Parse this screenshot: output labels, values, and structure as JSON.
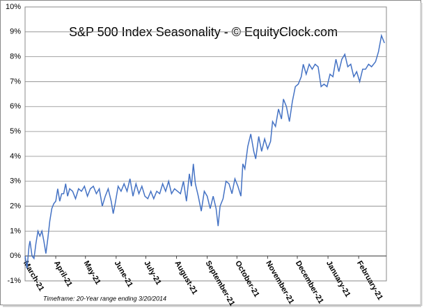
{
  "chart_data": {
    "type": "line",
    "title": "S&P 500 Index Seasonality - © EquityClock.com",
    "subtitle": "Timeframe: 20-Year range ending 3/20/2014",
    "x": [
      0,
      2,
      4,
      5,
      7,
      9,
      11,
      13,
      15,
      17,
      19,
      21,
      23,
      25,
      27,
      29,
      31,
      33,
      35,
      37,
      39,
      41,
      43,
      45,
      48,
      51,
      54,
      57,
      60,
      63,
      66,
      69,
      72,
      75,
      78,
      81,
      84,
      87,
      89,
      91,
      94,
      97,
      100,
      103,
      106,
      109,
      112,
      115,
      118,
      121,
      124,
      127,
      130,
      133,
      136,
      139,
      142,
      145,
      148,
      151,
      154,
      157,
      160,
      163,
      166,
      168,
      170,
      172,
      175,
      178,
      181,
      184,
      187,
      190,
      193,
      195,
      197,
      200,
      203,
      206,
      209,
      212,
      215,
      218,
      220,
      222,
      225,
      228,
      231,
      233,
      236,
      239,
      242,
      245,
      248,
      250,
      253,
      256,
      259,
      261,
      264,
      267,
      270,
      273,
      276,
      279,
      281,
      284,
      287,
      290,
      293,
      296,
      299,
      302,
      305,
      308,
      311,
      314,
      317,
      320,
      323,
      326,
      329,
      332,
      335,
      338,
      341,
      344,
      347,
      350,
      354,
      357,
      360,
      363
    ],
    "series": [
      {
        "name": "S&P 500",
        "color": "#4472c4",
        "values": [
          0.0,
          -0.5,
          0.4,
          0.6,
          0.0,
          -0.1,
          0.5,
          1.0,
          0.8,
          1.0,
          0.6,
          0.1,
          0.7,
          1.4,
          1.9,
          2.1,
          2.2,
          2.7,
          2.2,
          2.5,
          2.5,
          2.9,
          2.4,
          2.7,
          2.6,
          2.3,
          2.7,
          2.6,
          2.8,
          2.4,
          2.7,
          2.8,
          2.5,
          2.7,
          2.0,
          2.4,
          2.7,
          2.2,
          1.7,
          2.1,
          2.8,
          2.6,
          2.9,
          2.6,
          3.1,
          2.4,
          2.9,
          2.5,
          2.8,
          2.4,
          2.3,
          2.6,
          2.3,
          2.6,
          2.5,
          2.9,
          2.6,
          3.0,
          2.5,
          2.7,
          2.6,
          2.5,
          3.0,
          2.2,
          3.3,
          2.8,
          3.7,
          2.9,
          2.4,
          1.8,
          2.6,
          2.4,
          1.9,
          2.4,
          1.9,
          1.2,
          2.0,
          2.3,
          3.0,
          2.9,
          2.5,
          3.1,
          2.8,
          2.4,
          3.7,
          3.5,
          4.4,
          4.9,
          4.2,
          3.9,
          4.8,
          4.2,
          4.7,
          4.3,
          4.6,
          5.4,
          5.2,
          5.9,
          5.5,
          6.3,
          6.0,
          5.4,
          6.2,
          6.8,
          6.9,
          7.2,
          7.7,
          7.3,
          7.7,
          7.5,
          7.7,
          7.6,
          6.8,
          6.9,
          6.8,
          7.3,
          7.2,
          7.9,
          7.4,
          7.9,
          8.1,
          7.6,
          7.7,
          7.2,
          7.4,
          7.0,
          7.5,
          7.5,
          7.7,
          7.6,
          7.8,
          8.2,
          8.85,
          8.55
        ]
      }
    ],
    "xlim": [
      0,
      365
    ],
    "xticks": [
      {
        "value": 0,
        "label": "March-21"
      },
      {
        "value": 31,
        "label": "April-21"
      },
      {
        "value": 61,
        "label": "May-21"
      },
      {
        "value": 92,
        "label": "June-21"
      },
      {
        "value": 122,
        "label": "July-21"
      },
      {
        "value": 153,
        "label": "August-21"
      },
      {
        "value": 184,
        "label": "September-21"
      },
      {
        "value": 214,
        "label": "October-21"
      },
      {
        "value": 245,
        "label": "November-21"
      },
      {
        "value": 275,
        "label": "December-21"
      },
      {
        "value": 306,
        "label": "January-21"
      },
      {
        "value": 337,
        "label": "February-21"
      }
    ],
    "ylim": [
      -1,
      10
    ],
    "yticks": [
      {
        "value": -1,
        "label": "-1%"
      },
      {
        "value": 0,
        "label": "0%"
      },
      {
        "value": 1,
        "label": "1%"
      },
      {
        "value": 2,
        "label": "2%"
      },
      {
        "value": 3,
        "label": "3%"
      },
      {
        "value": 4,
        "label": "4%"
      },
      {
        "value": 5,
        "label": "5%"
      },
      {
        "value": 6,
        "label": "6%"
      },
      {
        "value": 7,
        "label": "7%"
      },
      {
        "value": 8,
        "label": "8%"
      },
      {
        "value": 9,
        "label": "9%"
      },
      {
        "value": 10,
        "label": "10%"
      }
    ],
    "grid": true
  }
}
